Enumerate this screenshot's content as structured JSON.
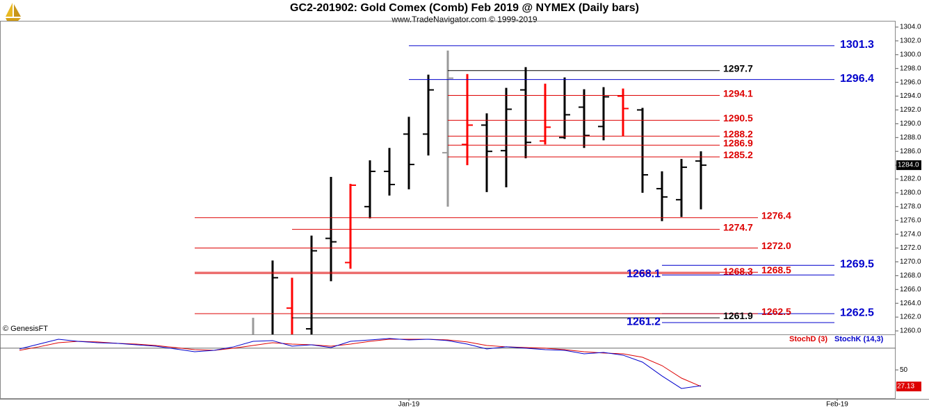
{
  "header": {
    "title": "GC2-201902:  Gold Comex (Comb) Feb 2019 @ NYMEX  (Daily bars)",
    "subtitle": "www.TradeNavigator.com © 1999-2019",
    "copyright": "© GenesisFT"
  },
  "chart_data": [
    {
      "type": "ohlc",
      "xlim": [
        -1,
        45
      ],
      "ylim": [
        1259.5,
        1305
      ],
      "x": [
        12,
        13,
        14,
        15,
        16,
        17,
        18,
        19,
        20,
        21,
        22,
        23,
        24,
        25,
        26,
        27,
        28,
        29,
        30,
        31,
        32,
        33,
        34,
        35
      ],
      "open": [
        1259,
        1259,
        1263.3,
        1260.3,
        1273.4,
        1269.9,
        1278.0,
        1283.1,
        1288.5,
        1288.5,
        1285.8,
        1287.0,
        1289.8,
        1286.1,
        1294.9,
        1287.5,
        1288.0,
        1292.4,
        1289.6,
        1294.0,
        1292.0,
        1280.6,
        1279.0,
        1284.6
      ],
      "high": [
        1261.9,
        1270.2,
        1267.7,
        1273.8,
        1282.3,
        1281.3,
        1284.7,
        1286.5,
        1291.0,
        1297.1,
        1300.6,
        1297.2,
        1291.5,
        1295.2,
        1298.2,
        1295.8,
        1296.7,
        1295.0,
        1295.3,
        1295.1,
        1292.3,
        1283.1,
        1284.9,
        1286.0
      ],
      "low": [
        1258,
        1258,
        1258,
        1258,
        1267.2,
        1269.0,
        1276.3,
        1279.6,
        1280.5,
        1285.4,
        1278.0,
        1284.0,
        1280.1,
        1280.8,
        1285.0,
        1287.0,
        1287.8,
        1286.5,
        1287.6,
        1288.2,
        1280.0,
        1275.9,
        1276.5,
        1277.6
      ],
      "close": [
        1259,
        1267.7,
        1259,
        1271.6,
        1272.9,
        1281.1,
        1283.1,
        1281.2,
        1284.1,
        1294.9,
        1296.6,
        1289.8,
        1286.0,
        1292.1,
        1287.3,
        1289.5,
        1291.3,
        1288.3,
        1293.9,
        1292.2,
        1282.6,
        1279.4,
        1283.7,
        1284.0
      ],
      "colors": [
        "#999999",
        "#000000",
        "#ff0000",
        "#000000",
        "#000000",
        "#ff0000",
        "#000000",
        "#000000",
        "#000000",
        "#000000",
        "#999999",
        "#ff0000",
        "#000000",
        "#000000",
        "#000000",
        "#ff0000",
        "#000000",
        "#000000",
        "#000000",
        "#ff0000",
        "#000000",
        "#000000",
        "#000000",
        "#000000"
      ],
      "yticks": [
        {
          "value": 1260,
          "label": "1260.0"
        },
        {
          "value": 1262,
          "label": "1262.0"
        },
        {
          "value": 1264,
          "label": "1264.0"
        },
        {
          "value": 1266,
          "label": "1266.0"
        },
        {
          "value": 1268,
          "label": "1268.0"
        },
        {
          "value": 1270,
          "label": "1270.0"
        },
        {
          "value": 1272,
          "label": "1272.0"
        },
        {
          "value": 1274,
          "label": "1274.0"
        },
        {
          "value": 1276,
          "label": "1276.0"
        },
        {
          "value": 1278,
          "label": "1278.0"
        },
        {
          "value": 1280,
          "label": "1280.0"
        },
        {
          "value": 1282,
          "label": "1282.0"
        },
        {
          "value": 1284,
          "label": "1284.0"
        },
        {
          "value": 1286,
          "label": "1286.0"
        },
        {
          "value": 1288,
          "label": "1288.0"
        },
        {
          "value": 1290,
          "label": "1290.0"
        },
        {
          "value": 1292,
          "label": "1292.0"
        },
        {
          "value": 1294,
          "label": "1294.0"
        },
        {
          "value": 1296,
          "label": "1296.0"
        },
        {
          "value": 1298,
          "label": "1298.0"
        },
        {
          "value": 1300,
          "label": "1300.0"
        },
        {
          "value": 1302,
          "label": "1302.0"
        },
        {
          "value": 1304,
          "label": "1304.0"
        }
      ],
      "price_marker": {
        "value": 1284,
        "label": "1284.0"
      },
      "levels": [
        {
          "value": 1301.3,
          "label": "1301.3",
          "color": "#0000cc"
        },
        {
          "value": 1297.7,
          "label": "1297.7",
          "color": "#000000"
        },
        {
          "value": 1296.4,
          "label": "1296.4",
          "color": "#0000cc"
        },
        {
          "value": 1294.1,
          "label": "1294.1",
          "color": "#dd0000"
        },
        {
          "value": 1290.5,
          "label": "1290.5",
          "color": "#dd0000"
        },
        {
          "value": 1288.2,
          "label": "1288.2",
          "color": "#dd0000"
        },
        {
          "value": 1286.9,
          "label": "1286.9",
          "color": "#dd0000"
        },
        {
          "value": 1285.2,
          "label": "1285.2",
          "color": "#dd0000"
        },
        {
          "value": 1276.4,
          "label": "1276.4",
          "color": "#dd0000"
        },
        {
          "value": 1274.7,
          "label": "1274.7",
          "color": "#dd0000"
        },
        {
          "value": 1272.0,
          "label": "1272.0",
          "color": "#dd0000"
        },
        {
          "value": 1269.5,
          "label": "1269.5",
          "color": "#0000cc"
        },
        {
          "value": 1268.5,
          "label": "1268.5",
          "color": "#dd0000"
        },
        {
          "value": 1268.3,
          "label": "1268.3",
          "color": "#dd0000"
        },
        {
          "value": 1268.1,
          "label": "1268.1",
          "color": "#0000cc"
        },
        {
          "value": 1262.5,
          "label": "1262.5",
          "color": "#0000cc"
        },
        {
          "value": 1262.5,
          "label": "1262.5",
          "color": "#dd0000"
        },
        {
          "value": 1261.9,
          "label": "1261.9",
          "color": "#000000"
        },
        {
          "value": 1261.2,
          "label": "1261.2",
          "color": "#0000cc"
        }
      ]
    },
    {
      "type": "line",
      "xlim": [
        -1,
        45
      ],
      "ylim": [
        10,
        98
      ],
      "x": [
        0,
        1,
        2,
        3,
        4,
        5,
        6,
        7,
        8,
        9,
        10,
        11,
        12,
        13,
        14,
        15,
        16,
        17,
        18,
        19,
        20,
        21,
        22,
        23,
        24,
        25,
        26,
        27,
        28,
        29,
        30,
        31,
        32,
        33,
        34,
        35
      ],
      "series": [
        {
          "name": "StochD (3)",
          "color": "#dd0000",
          "values": [
            77.0,
            81.8,
            87.5,
            89.4,
            88.5,
            86.6,
            85.6,
            83.7,
            80.8,
            77.9,
            77.0,
            79.9,
            83.7,
            87.5,
            85.6,
            84.6,
            82.7,
            85.6,
            89.4,
            92.3,
            92.3,
            92.3,
            91.3,
            88.5,
            83.7,
            81.8,
            80.8,
            79.9,
            77.9,
            75.1,
            73.2,
            72.2,
            67.4,
            55.9,
            38.7,
            27.13
          ]
        },
        {
          "name": "StochK (14,3)",
          "color": "#0000cc",
          "values": [
            78.9,
            85.6,
            92.3,
            89.4,
            87.5,
            86.6,
            84.6,
            82.7,
            78.9,
            75.1,
            77.0,
            81.8,
            89.4,
            90.4,
            82.7,
            84.6,
            80.8,
            89.4,
            91.3,
            93.3,
            91.3,
            92.3,
            90.4,
            85.6,
            78.9,
            81.8,
            79.9,
            77.9,
            77.0,
            72.2,
            74.1,
            70.3,
            60.7,
            41.6,
            24.4,
            28.2
          ]
        }
      ],
      "yticks": [
        50
      ],
      "levels": [
        80
      ],
      "xticks": [
        {
          "value": 20,
          "label": "Jan-19"
        },
        {
          "value": 42,
          "label": "Feb-19"
        }
      ]
    }
  ]
}
